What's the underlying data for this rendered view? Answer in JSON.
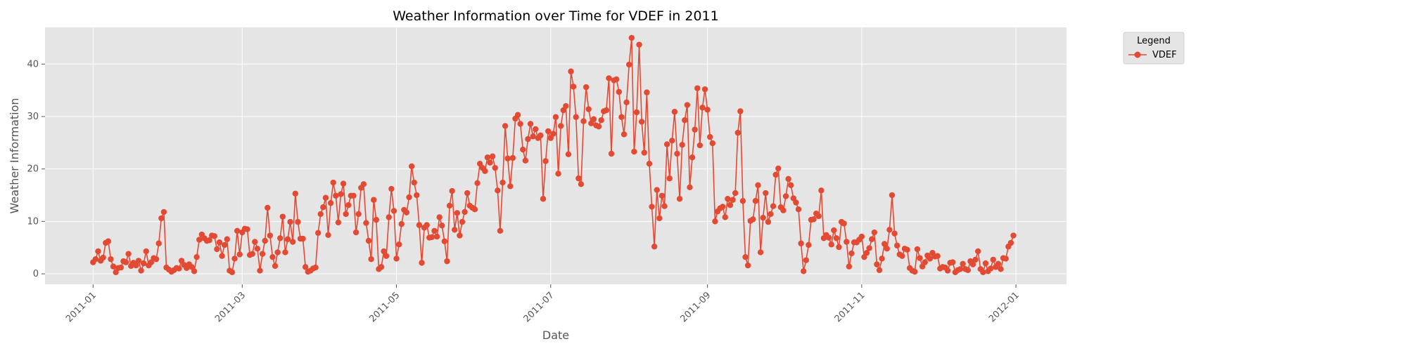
{
  "chart_data": {
    "type": "line",
    "title": "Weather Information over Time for VDEF in 2011",
    "xlabel": "Date",
    "ylabel": "Weather Information",
    "xlim": [
      "2010-12-13",
      "2012-01-21"
    ],
    "ylim": [
      -2,
      47
    ],
    "x_ticks": [
      "2011-01",
      "2011-03",
      "2011-05",
      "2011-07",
      "2011-09",
      "2011-11",
      "2012-01"
    ],
    "y_ticks": [
      0,
      10,
      20,
      30,
      40
    ],
    "grid": true,
    "legend": {
      "title": "Legend",
      "position": "outside-top-right"
    },
    "colors": {
      "series": "#e24a33",
      "plot_background": "#e5e5e5",
      "grid": "#ffffff"
    },
    "series": [
      {
        "name": "VDEF",
        "x": [
          "2011-01-01",
          "2011-01-02",
          "2011-01-03",
          "2011-01-04",
          "2011-01-05",
          "2011-01-06",
          "2011-01-07",
          "2011-01-08",
          "2011-01-09",
          "2011-01-10",
          "2011-01-11",
          "2011-01-12",
          "2011-01-13",
          "2011-01-14",
          "2011-01-15",
          "2011-01-16",
          "2011-01-17",
          "2011-01-18",
          "2011-01-19",
          "2011-01-20",
          "2011-01-21",
          "2011-01-22",
          "2011-01-23",
          "2011-01-24",
          "2011-01-25",
          "2011-01-26",
          "2011-01-27",
          "2011-01-28",
          "2011-01-29",
          "2011-01-30",
          "2011-01-31",
          "2011-02-01",
          "2011-02-02",
          "2011-02-03",
          "2011-02-04",
          "2011-02-05",
          "2011-02-06",
          "2011-02-07",
          "2011-02-08",
          "2011-02-09",
          "2011-02-10",
          "2011-02-11",
          "2011-02-12",
          "2011-02-13",
          "2011-02-14",
          "2011-02-15",
          "2011-02-16",
          "2011-02-17",
          "2011-02-18",
          "2011-02-19",
          "2011-02-20",
          "2011-02-21",
          "2011-02-22",
          "2011-02-23",
          "2011-02-24",
          "2011-02-25",
          "2011-02-26",
          "2011-02-27",
          "2011-02-28",
          "2011-03-01",
          "2011-03-02",
          "2011-03-03",
          "2011-03-04",
          "2011-03-05",
          "2011-03-06",
          "2011-03-07",
          "2011-03-08",
          "2011-03-09",
          "2011-03-10",
          "2011-03-11",
          "2011-03-12",
          "2011-03-13",
          "2011-03-14",
          "2011-03-15",
          "2011-03-16",
          "2011-03-17",
          "2011-03-18",
          "2011-03-19",
          "2011-03-20",
          "2011-03-21",
          "2011-03-22",
          "2011-03-23",
          "2011-03-24",
          "2011-03-25",
          "2011-03-26",
          "2011-03-27",
          "2011-03-28",
          "2011-03-29",
          "2011-03-30",
          "2011-03-31",
          "2011-04-01",
          "2011-04-02",
          "2011-04-03",
          "2011-04-04",
          "2011-04-05",
          "2011-04-06",
          "2011-04-07",
          "2011-04-08",
          "2011-04-09",
          "2011-04-10",
          "2011-04-11",
          "2011-04-12",
          "2011-04-13",
          "2011-04-14",
          "2011-04-15",
          "2011-04-16",
          "2011-04-17",
          "2011-04-18",
          "2011-04-19",
          "2011-04-20",
          "2011-04-21",
          "2011-04-22",
          "2011-04-23",
          "2011-04-24",
          "2011-04-25",
          "2011-04-26",
          "2011-04-27",
          "2011-04-28",
          "2011-04-29",
          "2011-04-30",
          "2011-05-01",
          "2011-05-02",
          "2011-05-03",
          "2011-05-04",
          "2011-05-05",
          "2011-05-06",
          "2011-05-07",
          "2011-05-08",
          "2011-05-09",
          "2011-05-10",
          "2011-05-11",
          "2011-05-12",
          "2011-05-13",
          "2011-05-14",
          "2011-05-15",
          "2011-05-16",
          "2011-05-17",
          "2011-05-18",
          "2011-05-19",
          "2011-05-20",
          "2011-05-21",
          "2011-05-22",
          "2011-05-23",
          "2011-05-24",
          "2011-05-25",
          "2011-05-26",
          "2011-05-27",
          "2011-05-28",
          "2011-05-29",
          "2011-05-30",
          "2011-05-31",
          "2011-06-01",
          "2011-06-02",
          "2011-06-03",
          "2011-06-04",
          "2011-06-05",
          "2011-06-06",
          "2011-06-07",
          "2011-06-08",
          "2011-06-09",
          "2011-06-10",
          "2011-06-11",
          "2011-06-12",
          "2011-06-13",
          "2011-06-14",
          "2011-06-15",
          "2011-06-16",
          "2011-06-17",
          "2011-06-18",
          "2011-06-19",
          "2011-06-20",
          "2011-06-21",
          "2011-06-22",
          "2011-06-23",
          "2011-06-24",
          "2011-06-25",
          "2011-06-26",
          "2011-06-27",
          "2011-06-28",
          "2011-06-29",
          "2011-06-30",
          "2011-07-01",
          "2011-07-02",
          "2011-07-03",
          "2011-07-04",
          "2011-07-05",
          "2011-07-06",
          "2011-07-07",
          "2011-07-08",
          "2011-07-09",
          "2011-07-10",
          "2011-07-11",
          "2011-07-12",
          "2011-07-13",
          "2011-07-14",
          "2011-07-15",
          "2011-07-16",
          "2011-07-17",
          "2011-07-18",
          "2011-07-19",
          "2011-07-20",
          "2011-07-21",
          "2011-07-22",
          "2011-07-23",
          "2011-07-24",
          "2011-07-25",
          "2011-07-26",
          "2011-07-27",
          "2011-07-28",
          "2011-07-29",
          "2011-07-30",
          "2011-07-31",
          "2011-08-01",
          "2011-08-02",
          "2011-08-03",
          "2011-08-04",
          "2011-08-05",
          "2011-08-06",
          "2011-08-07",
          "2011-08-08",
          "2011-08-09",
          "2011-08-10",
          "2011-08-11",
          "2011-08-12",
          "2011-08-13",
          "2011-08-14",
          "2011-08-15",
          "2011-08-16",
          "2011-08-17",
          "2011-08-18",
          "2011-08-19",
          "2011-08-20",
          "2011-08-21",
          "2011-08-22",
          "2011-08-23",
          "2011-08-24",
          "2011-08-25",
          "2011-08-26",
          "2011-08-27",
          "2011-08-28",
          "2011-08-29",
          "2011-08-30",
          "2011-08-31",
          "2011-09-01",
          "2011-09-02",
          "2011-09-03",
          "2011-09-04",
          "2011-09-05",
          "2011-09-06",
          "2011-09-07",
          "2011-09-08",
          "2011-09-09",
          "2011-09-10",
          "2011-09-11",
          "2011-09-12",
          "2011-09-13",
          "2011-09-14",
          "2011-09-15",
          "2011-09-16",
          "2011-09-17",
          "2011-09-18",
          "2011-09-19",
          "2011-09-20",
          "2011-09-21",
          "2011-09-22",
          "2011-09-23",
          "2011-09-24",
          "2011-09-25",
          "2011-09-26",
          "2011-09-27",
          "2011-09-28",
          "2011-09-29",
          "2011-09-30",
          "2011-10-01",
          "2011-10-02",
          "2011-10-03",
          "2011-10-04",
          "2011-10-05",
          "2011-10-06",
          "2011-10-07",
          "2011-10-08",
          "2011-10-09",
          "2011-10-10",
          "2011-10-11",
          "2011-10-12",
          "2011-10-13",
          "2011-10-14",
          "2011-10-15",
          "2011-10-16",
          "2011-10-17",
          "2011-10-18",
          "2011-10-19",
          "2011-10-20",
          "2011-10-21",
          "2011-10-22",
          "2011-10-23",
          "2011-10-24",
          "2011-10-25",
          "2011-10-26",
          "2011-10-27",
          "2011-10-28",
          "2011-10-29",
          "2011-10-30",
          "2011-10-31",
          "2011-11-01",
          "2011-11-02",
          "2011-11-03",
          "2011-11-04",
          "2011-11-05",
          "2011-11-06",
          "2011-11-07",
          "2011-11-08",
          "2011-11-09",
          "2011-11-10",
          "2011-11-11",
          "2011-11-12",
          "2011-11-13",
          "2011-11-14",
          "2011-11-15",
          "2011-11-16",
          "2011-11-17",
          "2011-11-18",
          "2011-11-19",
          "2011-11-20",
          "2011-11-21",
          "2011-11-22",
          "2011-11-23",
          "2011-11-24",
          "2011-11-25",
          "2011-11-26",
          "2011-11-27",
          "2011-11-28",
          "2011-11-29",
          "2011-11-30",
          "2011-12-01",
          "2011-12-02",
          "2011-12-03",
          "2011-12-04",
          "2011-12-05",
          "2011-12-06",
          "2011-12-07",
          "2011-12-08",
          "2011-12-09",
          "2011-12-10",
          "2011-12-11",
          "2011-12-12",
          "2011-12-13",
          "2011-12-14",
          "2011-12-15",
          "2011-12-16",
          "2011-12-17",
          "2011-12-18",
          "2011-12-19",
          "2011-12-20",
          "2011-12-21",
          "2011-12-22",
          "2011-12-23",
          "2011-12-24",
          "2011-12-25",
          "2011-12-26",
          "2011-12-27",
          "2011-12-28",
          "2011-12-29",
          "2011-12-30",
          "2011-12-31"
        ],
        "values": [
          2.2,
          2.8,
          4.3,
          2.5,
          3.1,
          5.9,
          6.2,
          2.8,
          1.4,
          0.3,
          1.1,
          1.2,
          2.4,
          2.2,
          3.8,
          1.5,
          2.1,
          1.6,
          2.5,
          0.6,
          2.0,
          4.3,
          1.6,
          2.2,
          3.0,
          2.8,
          5.8,
          10.6,
          11.8,
          1.2,
          0.8,
          0.4,
          0.7,
          1.1,
          1.0,
          2.5,
          1.7,
          1.1,
          1.8,
          1.3,
          0.5,
          3.2,
          6.5,
          7.5,
          6.8,
          6.3,
          6.4,
          7.3,
          7.2,
          4.7,
          6.0,
          3.4,
          5.5,
          6.6,
          0.6,
          0.3,
          2.9,
          8.2,
          3.7,
          7.9,
          8.6,
          8.5,
          3.6,
          3.8,
          6.1,
          4.8,
          0.6,
          3.8,
          6.3,
          12.6,
          7.3,
          3.2,
          1.5,
          4.1,
          6.8,
          10.9,
          4.1,
          6.6,
          9.9,
          6.1,
          15.3,
          9.9,
          6.7,
          6.7,
          1.3,
          0.4,
          0.6,
          1.0,
          1.2,
          7.8,
          11.4,
          12.7,
          14.5,
          7.4,
          13.5,
          17.4,
          14.9,
          9.8,
          15.2,
          17.2,
          11.4,
          13.1,
          14.9,
          14.9,
          7.9,
          11.4,
          16.4,
          17.1,
          9.7,
          6.3,
          2.8,
          14.1,
          10.3,
          0.9,
          1.3,
          4.3,
          3.4,
          10.8,
          16.2,
          12.0,
          2.9,
          5.6,
          9.5,
          12.2,
          11.7,
          14.6,
          20.5,
          17.4,
          15.0,
          9.3,
          2.1,
          8.8,
          9.3,
          6.9,
          7.0,
          8.2,
          7.1,
          10.8,
          9.2,
          6.2,
          2.4,
          13.0,
          15.8,
          8.4,
          11.6,
          7.3,
          9.9,
          11.8,
          15.4,
          13.0,
          12.6,
          12.3,
          17.3,
          21.0,
          20.2,
          19.6,
          22.2,
          21.2,
          22.4,
          20.2,
          15.9,
          8.2,
          17.4,
          28.2,
          22.0,
          16.7,
          22.1,
          29.6,
          30.3,
          28.6,
          23.7,
          21.6,
          25.7,
          28.6,
          26.2,
          27.6,
          25.9,
          26.4,
          14.3,
          21.5,
          27.2,
          25.9,
          26.7,
          29.9,
          19.1,
          28.2,
          31.2,
          32.0,
          22.8,
          38.6,
          35.7,
          29.9,
          18.2,
          17.1,
          29.1,
          35.6,
          31.4,
          28.7,
          29.5,
          28.3,
          28.1,
          29.3,
          31.0,
          31.2,
          37.3,
          22.9,
          36.9,
          37.1,
          34.7,
          29.9,
          26.6,
          32.7,
          39.9,
          45.0,
          23.3,
          30.8,
          43.7,
          29.0,
          23.1,
          34.6,
          21.0,
          12.8,
          5.2,
          16.0,
          10.6,
          14.9,
          12.9,
          24.7,
          18.2,
          25.4,
          30.9,
          22.9,
          14.3,
          24.6,
          29.3,
          32.2,
          16.5,
          22.2,
          27.5,
          35.4,
          24.5,
          31.7,
          35.2,
          31.3,
          26.1,
          24.9,
          10.0,
          11.9,
          12.5,
          12.8,
          10.8,
          14.3,
          13.1,
          14.1,
          15.4,
          26.9,
          31.0,
          13.9,
          3.2,
          1.6,
          10.1,
          10.4,
          13.9,
          16.9,
          4.1,
          10.7,
          15.4,
          9.9,
          11.4,
          12.9,
          18.9,
          20.1,
          12.7,
          12.1,
          14.8,
          18.1,
          16.9,
          14.4,
          13.6,
          12.3,
          5.8,
          0.5,
          2.6,
          5.5,
          10.3,
          10.4,
          11.5,
          11.0,
          15.9,
          6.8,
          7.4,
          6.9,
          5.6,
          8.3,
          6.8,
          5.1,
          9.9,
          9.6,
          6.1,
          1.4,
          3.9,
          6.0,
          6.0,
          6.5,
          7.1,
          3.2,
          4.0,
          4.9,
          6.6,
          7.9,
          1.8,
          0.7,
          2.9,
          5.7,
          4.8,
          8.4,
          15.0,
          7.7,
          5.4,
          3.7,
          3.4,
          4.8,
          4.6,
          1.1,
          0.6,
          0.4,
          4.7,
          3.0,
          1.4,
          2.2,
          3.5,
          2.9,
          4.0,
          3.3,
          3.4,
          1.0,
          1.3,
          1.2,
          0.6,
          2.1,
          2.2,
          0.3,
          0.7,
          0.9,
          1.9,
          0.9,
          0.7,
          2.4,
          1.8,
          2.7,
          4.3,
          0.9,
          0.3,
          2.0,
          0.5,
          1.0,
          2.7,
          1.3,
          1.9,
          0.9,
          3.0,
          2.9,
          5.2,
          5.9,
          7.3
        ]
      }
    ]
  }
}
